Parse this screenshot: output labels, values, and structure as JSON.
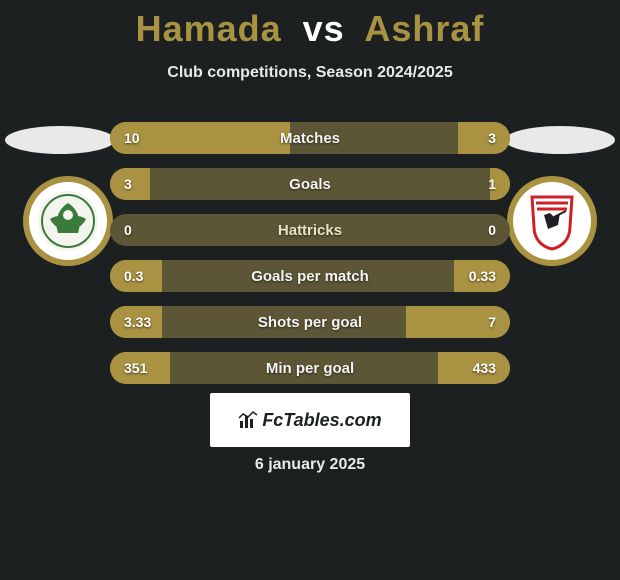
{
  "title": {
    "player1": "Hamada",
    "vs": "vs",
    "player2": "Ashraf"
  },
  "subtitle": "Club competitions, Season 2024/2025",
  "colors": {
    "accent": "#a99241",
    "bar_bg": "#5d5636",
    "page_bg": "#1c2021",
    "text": "#ffffff"
  },
  "bars": [
    {
      "label": "Matches",
      "left": "10",
      "right": "3",
      "left_pct": 45,
      "right_pct": 13
    },
    {
      "label": "Goals",
      "left": "3",
      "right": "1",
      "left_pct": 10,
      "right_pct": 5
    },
    {
      "label": "Hattricks",
      "left": "0",
      "right": "0",
      "left_pct": 0,
      "right_pct": 0
    },
    {
      "label": "Goals per match",
      "left": "0.3",
      "right": "0.33",
      "left_pct": 13,
      "right_pct": 14
    },
    {
      "label": "Shots per goal",
      "left": "3.33",
      "right": "7",
      "left_pct": 13,
      "right_pct": 26
    },
    {
      "label": "Min per goal",
      "left": "351",
      "right": "433",
      "left_pct": 15,
      "right_pct": 18
    }
  ],
  "brand": "FcTables.com",
  "date": "6 january 2025"
}
